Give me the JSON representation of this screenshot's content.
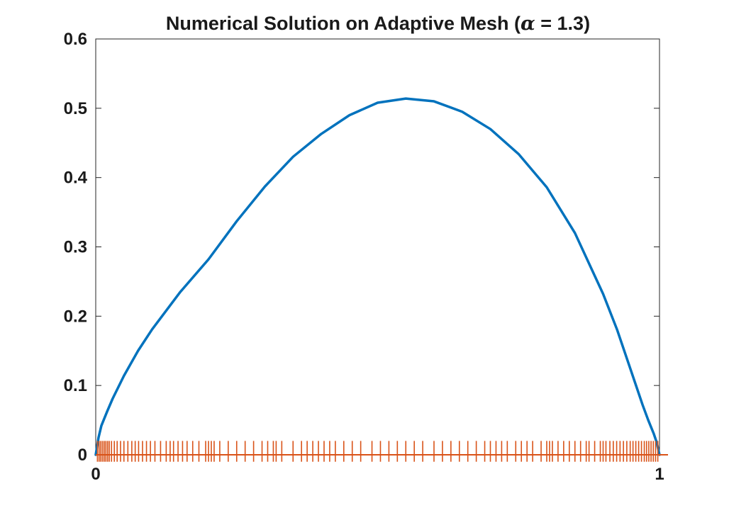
{
  "chart_data": {
    "type": "line",
    "title": "Numerical Solution on Adaptive Mesh (α = 1.3)",
    "title_parts": {
      "before": "Numerical Solution on Adaptive Mesh (",
      "symbol": "α",
      "after": " = 1.3)"
    },
    "alpha": 1.3,
    "xlabel": "",
    "ylabel": "",
    "xlim": [
      0,
      1
    ],
    "ylim": [
      0,
      0.6
    ],
    "x_ticks": [
      0,
      1
    ],
    "x_tick_labels": [
      "0",
      "1"
    ],
    "y_ticks": [
      0,
      0.1,
      0.2,
      0.3,
      0.4,
      0.5,
      0.6
    ],
    "y_tick_labels": [
      "0",
      "0.1",
      "0.2",
      "0.3",
      "0.4",
      "0.5",
      "0.6"
    ],
    "grid": false,
    "legend": "none",
    "series": [
      {
        "style": "line",
        "color": "#0072BD",
        "x": [
          0,
          0.005,
          0.01,
          0.02,
          0.03,
          0.05,
          0.075,
          0.1,
          0.15,
          0.2,
          0.25,
          0.3,
          0.35,
          0.4,
          0.45,
          0.5,
          0.55,
          0.6,
          0.65,
          0.7,
          0.75,
          0.8,
          0.85,
          0.9,
          0.925,
          0.95,
          0.97,
          0.98,
          0.99,
          0.995,
          1
        ],
        "y": [
          0,
          0.025,
          0.042,
          0.062,
          0.081,
          0.114,
          0.15,
          0.181,
          0.235,
          0.282,
          0.337,
          0.387,
          0.43,
          0.463,
          0.49,
          0.508,
          0.514,
          0.51,
          0.495,
          0.47,
          0.434,
          0.386,
          0.32,
          0.232,
          0.18,
          0.12,
          0.072,
          0.05,
          0.03,
          0.018,
          0
        ]
      },
      {
        "style": "mesh-markers",
        "color": "#D95319",
        "baseline": 0,
        "marker_height": 0.02,
        "x": [
          0.003,
          0.006,
          0.009,
          0.012,
          0.015,
          0.018,
          0.021,
          0.024,
          0.028,
          0.033,
          0.038,
          0.044,
          0.05,
          0.057,
          0.064,
          0.07,
          0.076,
          0.083,
          0.09,
          0.097,
          0.105,
          0.115,
          0.125,
          0.132,
          0.138,
          0.146,
          0.154,
          0.162,
          0.172,
          0.183,
          0.195,
          0.2,
          0.205,
          0.21,
          0.22,
          0.235,
          0.25,
          0.265,
          0.28,
          0.295,
          0.305,
          0.315,
          0.32,
          0.33,
          0.35,
          0.365,
          0.375,
          0.385,
          0.395,
          0.405,
          0.415,
          0.425,
          0.44,
          0.455,
          0.47,
          0.49,
          0.505,
          0.52,
          0.535,
          0.55,
          0.565,
          0.58,
          0.6,
          0.615,
          0.63,
          0.645,
          0.66,
          0.675,
          0.69,
          0.7,
          0.71,
          0.72,
          0.73,
          0.745,
          0.755,
          0.765,
          0.775,
          0.79,
          0.8,
          0.805,
          0.81,
          0.82,
          0.83,
          0.84,
          0.85,
          0.86,
          0.87,
          0.875,
          0.885,
          0.895,
          0.9,
          0.905,
          0.912,
          0.918,
          0.924,
          0.93,
          0.936,
          0.942,
          0.948,
          0.953,
          0.958,
          0.963,
          0.968,
          0.973,
          0.977,
          0.981,
          0.985,
          0.989,
          0.993,
          0.997
        ]
      }
    ]
  }
}
